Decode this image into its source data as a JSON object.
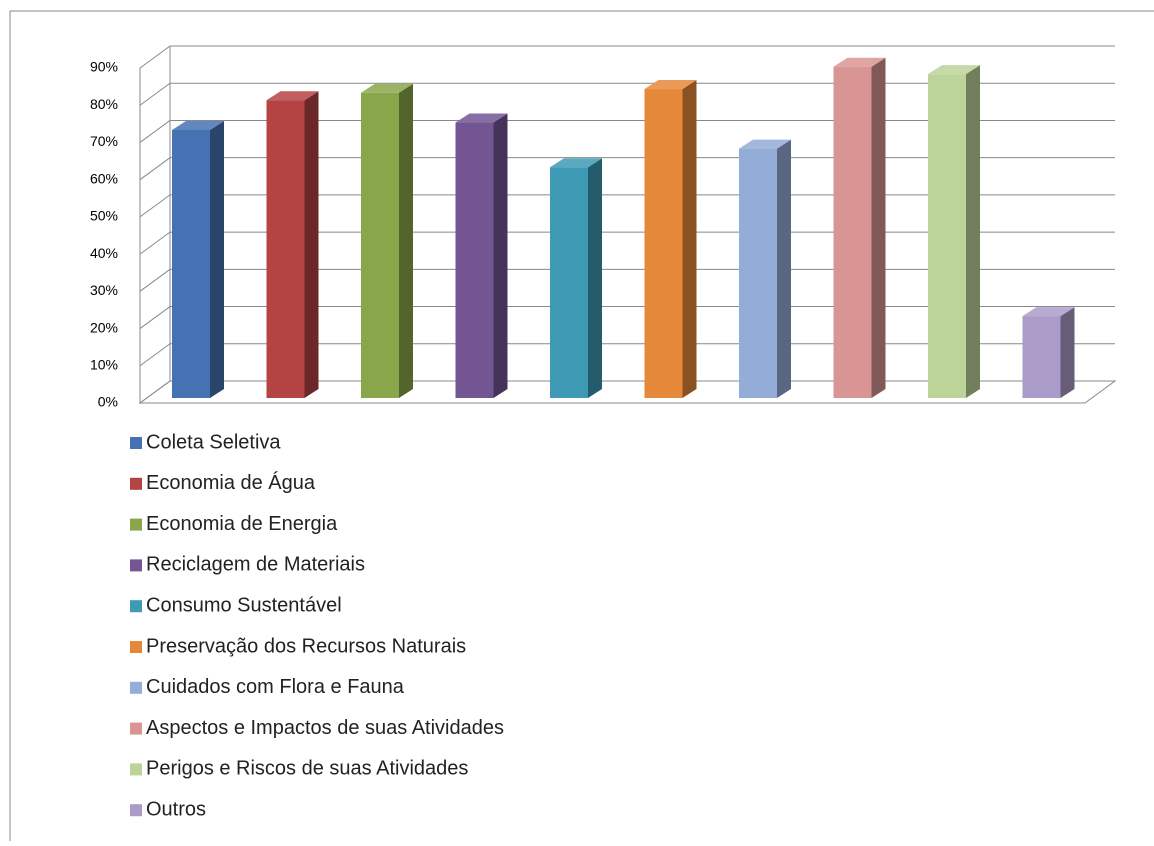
{
  "chart_data": {
    "type": "bar",
    "categories": [
      null
    ],
    "series": [
      {
        "name": "Coleta Seletiva",
        "color": "#4672b4",
        "values": [
          72
        ]
      },
      {
        "name": "Economia de Água",
        "color": "#b44343",
        "values": [
          80
        ]
      },
      {
        "name": "Economia de Energia",
        "color": "#8aa64a",
        "values": [
          82
        ]
      },
      {
        "name": "Reciclagem de Materiais",
        "color": "#735594",
        "values": [
          74
        ]
      },
      {
        "name": "Consumo Sustentável",
        "color": "#3e9ab4",
        "values": [
          62
        ]
      },
      {
        "name": "Preservação dos Recursos Naturais",
        "color": "#e6883a",
        "values": [
          83
        ]
      },
      {
        "name": "Cuidados com Flora e Fauna",
        "color": "#94acd8",
        "values": [
          67
        ]
      },
      {
        "name": "Aspectos e Impactos de suas Atividades",
        "color": "#d99494",
        "values": [
          89
        ]
      },
      {
        "name": "Perigos e Riscos de suas Atividades",
        "color": "#bcd39a",
        "values": [
          87
        ]
      },
      {
        "name": "Outros",
        "color": "#ab9bc9",
        "values": [
          22
        ]
      }
    ],
    "ylim": [
      0,
      90
    ],
    "yticks": [
      {
        "value": 0,
        "label": "0%"
      },
      {
        "value": 10,
        "label": "10%"
      },
      {
        "value": 20,
        "label": "20%"
      },
      {
        "value": 30,
        "label": "30%"
      },
      {
        "value": 40,
        "label": "40%"
      },
      {
        "value": 50,
        "label": "50%"
      },
      {
        "value": 60,
        "label": "60%"
      },
      {
        "value": 70,
        "label": "70%"
      },
      {
        "value": 80,
        "label": "80%"
      },
      {
        "value": 90,
        "label": "90%"
      }
    ],
    "grid": true,
    "legend": "bottom"
  }
}
